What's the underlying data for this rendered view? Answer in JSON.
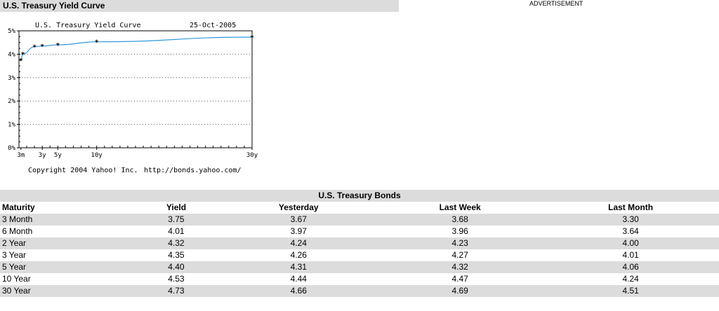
{
  "section_title": "U.S. Treasury Yield Curve",
  "advertisement_label": "ADVERTISEMENT",
  "chart_data": {
    "type": "line",
    "title": "U.S. Treasury Yield Curve",
    "date": "25-Oct-2005",
    "copyright": "Copyright 2004 Yahoo! Inc.",
    "url": "http://bonds.yahoo.com/",
    "x_tick_labels": [
      "3m",
      "3y",
      "5y",
      "10y",
      "30y"
    ],
    "x_tick_years": [
      0.25,
      3,
      5,
      10,
      30
    ],
    "y_tick_labels": [
      "0%",
      "1%",
      "2%",
      "3%",
      "4%",
      "5%"
    ],
    "y_tick_values": [
      0,
      1,
      2,
      3,
      4,
      5
    ],
    "xlim": [
      0,
      30
    ],
    "ylim": [
      0,
      5
    ],
    "grid": true,
    "line_color": "#3399dd",
    "series": [
      {
        "x": [
          0.25,
          0.5,
          2,
          3,
          5,
          10,
          30
        ],
        "y": [
          3.75,
          4.01,
          4.32,
          4.35,
          4.4,
          4.53,
          4.73
        ]
      }
    ]
  },
  "bonds_table": {
    "title": "U.S. Treasury Bonds",
    "columns": [
      "Maturity",
      "Yield",
      "Yesterday",
      "Last Week",
      "Last Month"
    ],
    "rows": [
      [
        "3 Month",
        "3.75",
        "3.67",
        "3.68",
        "3.30"
      ],
      [
        "6 Month",
        "4.01",
        "3.97",
        "3.96",
        "3.64"
      ],
      [
        "2 Year",
        "4.32",
        "4.24",
        "4.23",
        "4.00"
      ],
      [
        "3 Year",
        "4.35",
        "4.26",
        "4.27",
        "4.01"
      ],
      [
        "5 Year",
        "4.40",
        "4.31",
        "4.32",
        "4.06"
      ],
      [
        "10 Year",
        "4.53",
        "4.44",
        "4.47",
        "4.24"
      ],
      [
        "30 Year",
        "4.73",
        "4.66",
        "4.69",
        "4.51"
      ]
    ]
  }
}
